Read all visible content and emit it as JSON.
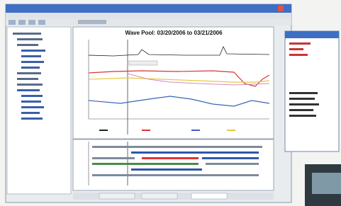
{
  "window": {
    "chart_title": "Wave Pool: 03/20/2006 to 03/21/2006"
  }
}
